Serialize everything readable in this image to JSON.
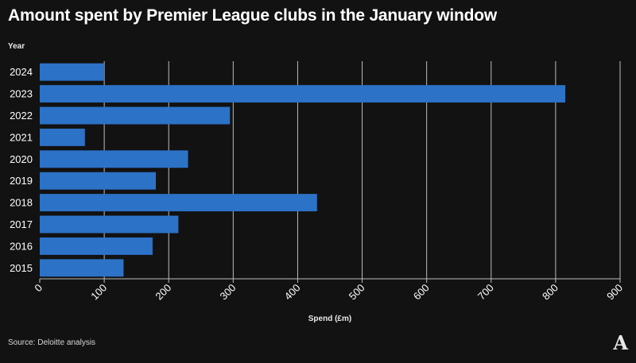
{
  "header": {
    "title": "Amount spent by Premier League clubs in the January window",
    "y_axis_label": "Year"
  },
  "footer": {
    "source": "Source: Deloitte analysis",
    "logo_letter": "A"
  },
  "chart_data": {
    "type": "bar",
    "orientation": "horizontal",
    "title": "Amount spent by Premier League clubs in the January window",
    "xlabel": "Spend (£m)",
    "ylabel": "Year",
    "xlim": [
      0,
      900
    ],
    "xticks": [
      0,
      100,
      200,
      300,
      400,
      500,
      600,
      700,
      800,
      900
    ],
    "grid": "vertical",
    "legend": "none",
    "bar_color": "#2c72c7",
    "categories": [
      "2024",
      "2023",
      "2022",
      "2021",
      "2020",
      "2019",
      "2018",
      "2017",
      "2016",
      "2015"
    ],
    "values": [
      100,
      815,
      295,
      70,
      230,
      180,
      430,
      215,
      175,
      130
    ]
  },
  "colors": {
    "background": "#121212",
    "bar": "#2c72c7",
    "grid": "#bdbdbd",
    "text": "#ffffff"
  }
}
